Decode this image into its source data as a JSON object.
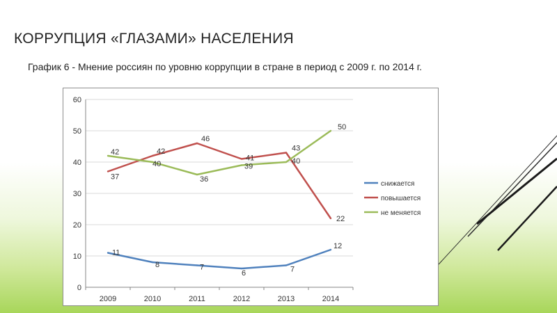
{
  "slide": {
    "title": "КОРРУПЦИЯ «ГЛАЗАМИ» НАСЕЛЕНИЯ",
    "caption": "График 6 - Мнение россиян по уровню коррупции в стране  в период с 2009 г. по 2014 г."
  },
  "colors": {
    "decrease": "#4f81bd",
    "increase": "#c0504d",
    "nochange": "#9bbb59",
    "grid": "#d9d9d9",
    "axis": "#868686"
  },
  "chart_data": {
    "type": "line",
    "categories": [
      "2009",
      "2010",
      "2011",
      "2012",
      "2013",
      "2014"
    ],
    "ylim": [
      0,
      60
    ],
    "yticks": [
      0,
      10,
      20,
      30,
      40,
      50,
      60
    ],
    "grid": true,
    "legend_position": "right",
    "series": [
      {
        "name": "снижается",
        "color": "#4f81bd",
        "values": [
          11,
          8,
          7,
          6,
          7,
          12
        ]
      },
      {
        "name": "повышается",
        "color": "#c0504d",
        "values": [
          37,
          42,
          46,
          41,
          43,
          22
        ]
      },
      {
        "name": "не меняется",
        "color": "#9bbb59",
        "values": [
          42,
          40,
          36,
          39,
          40,
          50
        ]
      }
    ]
  }
}
